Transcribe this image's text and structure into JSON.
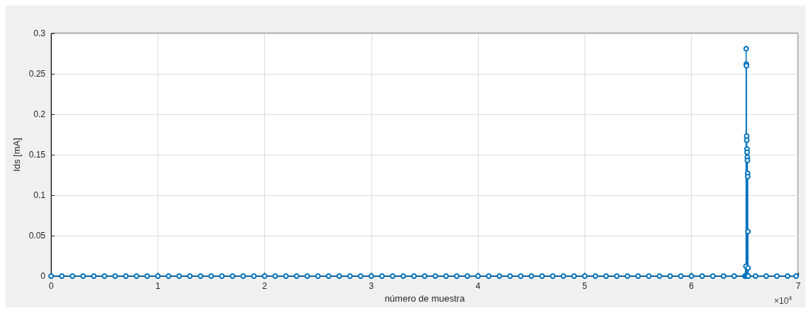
{
  "chart_data": {
    "type": "line",
    "xlabel": "número de muestra",
    "ylabel": "Ids [mA]",
    "annotations": [
      "×10$^{4}$"
    ],
    "xlim": [
      0,
      7
    ],
    "xticks": [
      0,
      1,
      2,
      3,
      4,
      5,
      6,
      7
    ],
    "ylim": [
      0,
      0.3
    ],
    "yticks": [
      0,
      0.05,
      0.1,
      0.15,
      0.2,
      0.25,
      0.3
    ],
    "grid": true,
    "marker": "circle",
    "line_style": "solid",
    "series": [
      {
        "color": "#0072bd",
        "x": [
          0,
          0.1,
          0.2,
          0.3,
          0.4,
          0.5,
          0.6,
          0.7,
          0.8,
          0.9,
          1,
          1.1,
          1.2,
          1.3,
          1.4,
          1.5,
          1.6,
          1.7,
          1.8,
          1.9,
          2,
          2.1,
          2.2,
          2.3,
          2.4,
          2.5,
          2.6,
          2.7,
          2.8,
          2.9,
          3,
          3.1,
          3.2,
          3.3,
          3.4,
          3.5,
          3.6,
          3.7,
          3.8,
          3.9,
          4,
          4.1,
          4.2,
          4.3,
          4.4,
          4.5,
          4.6,
          4.7,
          4.8,
          4.9,
          5,
          5.1,
          5.2,
          5.3,
          5.4,
          5.5,
          5.6,
          5.7,
          5.8,
          5.9,
          6,
          6.1,
          6.2,
          6.3,
          6.4,
          6.5,
          6.51,
          6.511,
          6.512,
          6.513,
          6.514,
          6.515,
          6.516,
          6.517,
          6.518,
          6.519,
          6.52,
          6.521,
          6.522,
          6.523,
          6.524,
          6.525,
          6.526,
          6.527,
          6.528,
          6.529,
          6.53,
          6.531,
          6.6,
          6.7,
          6.8,
          6.9,
          6.98
        ],
        "values": [
          0,
          0,
          0,
          0,
          0,
          0,
          0,
          0,
          0,
          0,
          0,
          0,
          0,
          0,
          0,
          0,
          0,
          0,
          0,
          0,
          0,
          0,
          0,
          0,
          0,
          0,
          0,
          0,
          0,
          0,
          0,
          0,
          0,
          0,
          0,
          0,
          0,
          0,
          0,
          0,
          0,
          0,
          0,
          0,
          0,
          0,
          0,
          0,
          0,
          0,
          0,
          0,
          0,
          0,
          0,
          0,
          0,
          0,
          0,
          0,
          0,
          0,
          0,
          0,
          0,
          0,
          0.012,
          0,
          0.281,
          0,
          0.262,
          0.26,
          0,
          0.173,
          0.168,
          0,
          0.157,
          0.153,
          0,
          0.147,
          0.143,
          0,
          0.127,
          0.123,
          0,
          0.055,
          0.01,
          0,
          0,
          0,
          0,
          0,
          0
        ]
      }
    ]
  }
}
